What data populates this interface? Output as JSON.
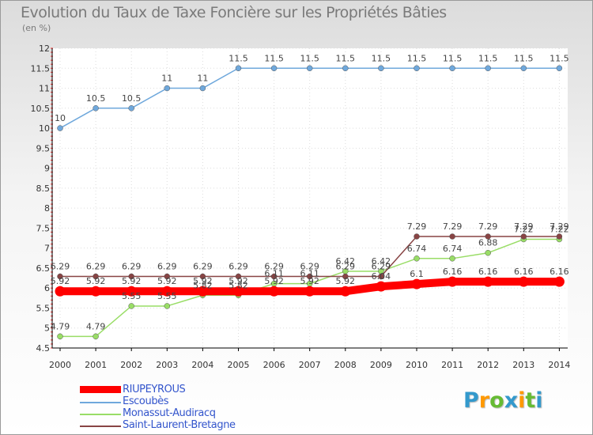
{
  "chart_data": {
    "type": "line",
    "title": "Evolution du Taux de Taxe Foncière sur les Propriétés Bâties",
    "subtitle": "(en %)",
    "x": [
      "2000",
      "2001",
      "2002",
      "2003",
      "2004",
      "2005",
      "2006",
      "2007",
      "2008",
      "2009",
      "2010",
      "2011",
      "2012",
      "2013",
      "2014"
    ],
    "ylim": [
      4.5,
      12
    ],
    "yticks": [
      "4.5",
      "5",
      "5.5",
      "6",
      "6.5",
      "7",
      "7.5",
      "8",
      "8.5",
      "9",
      "9.5",
      "10",
      "10.5",
      "11",
      "11.5",
      "12"
    ],
    "series": [
      {
        "name": "RIUPEYROUS",
        "color": "#ff0000",
        "values": [
          5.92,
          5.92,
          5.92,
          5.92,
          5.92,
          5.92,
          5.92,
          5.92,
          5.92,
          6.04,
          6.1,
          6.16,
          6.16,
          6.16,
          6.16
        ],
        "labels": [
          "5.92",
          "5.92",
          "5.92",
          "5.92",
          "5.92",
          "5.92",
          "5.92",
          "5.92",
          "5.92",
          "6.04",
          "6.1",
          "6.16",
          "6.16",
          "6.16",
          "6.16"
        ]
      },
      {
        "name": "Escoubès",
        "color": "#6fa8dc",
        "values": [
          10,
          10.5,
          10.5,
          11,
          11,
          11.5,
          11.5,
          11.5,
          11.5,
          11.5,
          11.5,
          11.5,
          11.5,
          11.5,
          11.5
        ],
        "labels": [
          "10",
          "10.5",
          "10.5",
          "11",
          "11",
          "11.5",
          "11.5",
          "11.5",
          "11.5",
          "11.5",
          "11.5",
          "11.5",
          "11.5",
          "11.5",
          "11.5"
        ]
      },
      {
        "name": "Monassut-Audiracq",
        "color": "#99dd66",
        "values": [
          4.79,
          4.79,
          5.55,
          5.55,
          5.82,
          5.82,
          6.11,
          6.11,
          6.42,
          6.42,
          6.74,
          6.74,
          6.88,
          7.22,
          7.22
        ],
        "labels": [
          "4.79",
          "4.79",
          "5.55",
          "5.55",
          "5.82",
          "5.82",
          "6.11",
          "6.11",
          "6.42",
          "6.42",
          "6.74",
          "6.74",
          "6.88",
          "7.22",
          "7.22"
        ]
      },
      {
        "name": "Saint-Laurent-Bretagne",
        "color": "#884444",
        "values": [
          6.29,
          6.29,
          6.29,
          6.29,
          6.29,
          6.29,
          6.29,
          6.29,
          6.29,
          6.29,
          7.29,
          7.29,
          7.29,
          7.29,
          7.29
        ],
        "labels": [
          "6.29",
          "6.29",
          "6.29",
          "6.29",
          "6.29",
          "6.29",
          "6.29",
          "6.29",
          "6.29",
          "6.29",
          "7.29",
          "7.29",
          "7.29",
          "7.29",
          "7.29"
        ]
      }
    ]
  },
  "legend": {
    "items": [
      {
        "label": "RIUPEYROUS",
        "color": "#ff0000"
      },
      {
        "label": "Escoubès",
        "color": "#6fa8dc"
      },
      {
        "label": "Monassut-Audiracq",
        "color": "#99dd66"
      },
      {
        "label": "Saint-Laurent-Bretagne",
        "color": "#884444"
      }
    ]
  },
  "logo": {
    "letters": [
      "P",
      "r",
      "o",
      "x",
      "i",
      "t",
      "i"
    ],
    "colors": [
      "#3399cc",
      "#ff9900",
      "#66bb33",
      "#3399cc",
      "#ff9900",
      "#66bb33",
      "#3399cc"
    ]
  }
}
